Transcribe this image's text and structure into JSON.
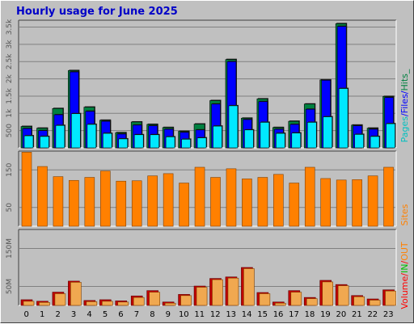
{
  "chart_data": [
    {
      "type": "bar",
      "title": "Hourly usage for June 2025",
      "x": [
        "0",
        "1",
        "2",
        "3",
        "4",
        "5",
        "6",
        "7",
        "8",
        "9",
        "10",
        "11",
        "12",
        "13",
        "14",
        "15",
        "16",
        "17",
        "18",
        "19",
        "20",
        "21",
        "22",
        "23"
      ],
      "ylim": [
        0,
        3700
      ],
      "yticks": [
        "500",
        "1k",
        "1.5k",
        "2k",
        "2.5k",
        "3k",
        "3.5k"
      ],
      "ytick_values": [
        500,
        1000,
        1500,
        2000,
        2500,
        3000,
        3500
      ],
      "legend": [
        "Pages",
        "Files",
        "Hits"
      ],
      "series": [
        {
          "name": "Hits",
          "color": "#008040",
          "values": [
            620,
            570,
            1140,
            2240,
            1180,
            800,
            440,
            750,
            680,
            590,
            480,
            690,
            1370,
            2560,
            860,
            1420,
            590,
            770,
            1270,
            1970,
            3600,
            660,
            570,
            1490
          ]
        },
        {
          "name": "Files",
          "color": "#0000ff",
          "values": [
            560,
            500,
            960,
            2200,
            1060,
            770,
            400,
            660,
            640,
            540,
            450,
            520,
            1270,
            2500,
            820,
            1340,
            540,
            680,
            1120,
            1960,
            3520,
            640,
            540,
            1460
          ]
        },
        {
          "name": "Pages",
          "color": "#00e8ff",
          "values": [
            350,
            330,
            650,
            990,
            680,
            420,
            260,
            380,
            380,
            320,
            250,
            290,
            630,
            1220,
            520,
            740,
            420,
            430,
            740,
            900,
            1720,
            390,
            330,
            700
          ]
        }
      ]
    },
    {
      "type": "bar",
      "x": [
        "0",
        "1",
        "2",
        "3",
        "4",
        "5",
        "6",
        "7",
        "8",
        "9",
        "10",
        "11",
        "12",
        "13",
        "14",
        "15",
        "16",
        "17",
        "18",
        "19",
        "20",
        "21",
        "22",
        "23"
      ],
      "ylim": [
        0,
        200
      ],
      "yticks": [
        "50",
        "150"
      ],
      "ytick_values": [
        50,
        150
      ],
      "legend": [
        "Sites"
      ],
      "series": [
        {
          "name": "Sites",
          "color": "#ff8000",
          "values": [
            197,
            159,
            132,
            122,
            130,
            147,
            120,
            121,
            134,
            140,
            115,
            157,
            130,
            153,
            126,
            130,
            138,
            115,
            157,
            127,
            123,
            124,
            134,
            157
          ]
        }
      ]
    },
    {
      "type": "bar",
      "x": [
        "0",
        "1",
        "2",
        "3",
        "4",
        "5",
        "6",
        "7",
        "8",
        "9",
        "10",
        "11",
        "12",
        "13",
        "14",
        "15",
        "16",
        "17",
        "18",
        "19",
        "20",
        "21",
        "22",
        "23"
      ],
      "ylim": [
        0,
        200
      ],
      "yticks": [
        "50M",
        "150M"
      ],
      "ytick_values": [
        50,
        150
      ],
      "legend": [
        "Volume",
        "IN",
        "OUT"
      ],
      "series": [
        {
          "name": "Volume",
          "color": "#c00000",
          "values": [
            15,
            11,
            35,
            64,
            13,
            15,
            12,
            25,
            39,
            9,
            29,
            51,
            71,
            75,
            100,
            34,
            9,
            39,
            21,
            66,
            55,
            26,
            17,
            41
          ]
        },
        {
          "name": "OUT",
          "color": "#f0a850",
          "values": [
            13,
            10,
            33,
            63,
            12,
            13,
            11,
            23,
            37,
            8,
            28,
            50,
            70,
            74,
            99,
            33,
            8,
            37,
            20,
            64,
            54,
            25,
            16,
            40
          ]
        }
      ]
    }
  ],
  "side_labels": {
    "pages": "Pages",
    "files": "Files",
    "hits": "Hits",
    "sites": "Sites",
    "volume": "Volume",
    "in": "IN",
    "out": "OUT",
    "slash": "/",
    "sep": "_"
  },
  "colors": {
    "background": "#c0c0c0",
    "title": "#0000c8",
    "pages": "#00c0c0",
    "files": "#0000ff",
    "hits": "#008040",
    "sites": "#ff8000",
    "volume": "#ff0000",
    "in": "#00c000",
    "out": "#ff8000"
  }
}
